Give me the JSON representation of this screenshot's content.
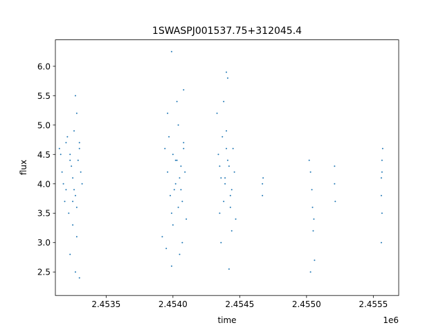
{
  "chart_data": {
    "type": "scatter",
    "title": "1SWASPJ001537.75+312045.4",
    "xlabel": "time",
    "ylabel": "flux",
    "x_offset_label": "1e6",
    "xlim": [
      2453120,
      2455690
    ],
    "ylim": [
      2.1,
      6.45
    ],
    "x_ticks": [
      2453500,
      2454000,
      2454500,
      2455000,
      2455500
    ],
    "x_tick_labels": [
      "2.4535",
      "2.4540",
      "2.4545",
      "2.4550",
      "2.4555"
    ],
    "y_ticks": [
      2.5,
      3.0,
      3.5,
      4.0,
      4.5,
      5.0,
      5.5,
      6.0
    ],
    "y_tick_labels": [
      "2.5",
      "3.0",
      "3.5",
      "4.0",
      "4.5",
      "5.0",
      "5.5",
      "6.0"
    ],
    "grid": false,
    "legend": "none",
    "marker_color": "#1f77b4",
    "series": [
      {
        "x": [
          2453150,
          2453170,
          2453200,
          2453230,
          2453250,
          2453270,
          2453290,
          2453300,
          2453320,
          2453260,
          2453280,
          2453240,
          2453210,
          2453190,
          2453160,
          2453180,
          2453220,
          2453310,
          2453230,
          2453270,
          2453200,
          2453250,
          2453280,
          2453300,
          2453260,
          2453270,
          2453300,
          2453230,
          2453250,
          2453280,
          2453940,
          2453960,
          2453980,
          2454000,
          2454020,
          2454040,
          2454060,
          2454080,
          2454010,
          2454030,
          2454050,
          2454070,
          2453970,
          2453990,
          2454090,
          2453960,
          2454000,
          2454040,
          2454080,
          2454100,
          2453920,
          2453950,
          2453990,
          2454030,
          2454070,
          2453990,
          2454050,
          2454020,
          2454060,
          2454080,
          2454340,
          2454360,
          2454380,
          2454400,
          2454420,
          2454440,
          2454460,
          2454350,
          2454370,
          2454390,
          2454410,
          2454430,
          2454450,
          2454330,
          2454470,
          2454360,
          2454400,
          2454440,
          2454380,
          2454420,
          2454410,
          2454430,
          2454400,
          2454350,
          2454390,
          2454670,
          2454670,
          2454675,
          2455020,
          2455030,
          2455040,
          2455045,
          2455050,
          2455060,
          2455030,
          2455055,
          2455210,
          2455210,
          2455215,
          2455560,
          2455560,
          2455565,
          2455565,
          2455570,
          2455560,
          2455565
        ],
        "y": [
          4.6,
          4.2,
          3.9,
          4.5,
          4.1,
          3.8,
          4.4,
          4.7,
          4.0,
          4.9,
          3.6,
          4.3,
          4.8,
          3.7,
          4.5,
          4.0,
          3.5,
          4.2,
          2.8,
          2.5,
          4.7,
          3.3,
          5.2,
          4.6,
          3.9,
          5.5,
          2.4,
          4.4,
          3.7,
          3.1,
          4.6,
          4.2,
          3.8,
          4.5,
          4.0,
          3.6,
          4.3,
          4.7,
          3.9,
          4.4,
          4.1,
          3.7,
          4.8,
          3.5,
          4.2,
          5.2,
          3.3,
          5.0,
          4.6,
          3.4,
          3.1,
          2.9,
          2.6,
          5.4,
          3.0,
          6.25,
          2.8,
          4.4,
          3.9,
          5.6,
          4.5,
          4.1,
          3.7,
          4.6,
          4.3,
          3.9,
          4.2,
          3.5,
          4.8,
          4.0,
          4.4,
          3.8,
          4.6,
          5.2,
          3.4,
          3.0,
          5.9,
          3.2,
          5.4,
          2.55,
          5.8,
          3.6,
          4.9,
          4.3,
          4.1,
          4.0,
          3.8,
          4.1,
          4.4,
          4.2,
          3.9,
          3.6,
          3.2,
          2.7,
          2.5,
          3.4,
          4.3,
          4.0,
          3.7,
          4.1,
          3.8,
          4.2,
          3.5,
          4.6,
          3.0,
          4.4
        ]
      }
    ]
  }
}
